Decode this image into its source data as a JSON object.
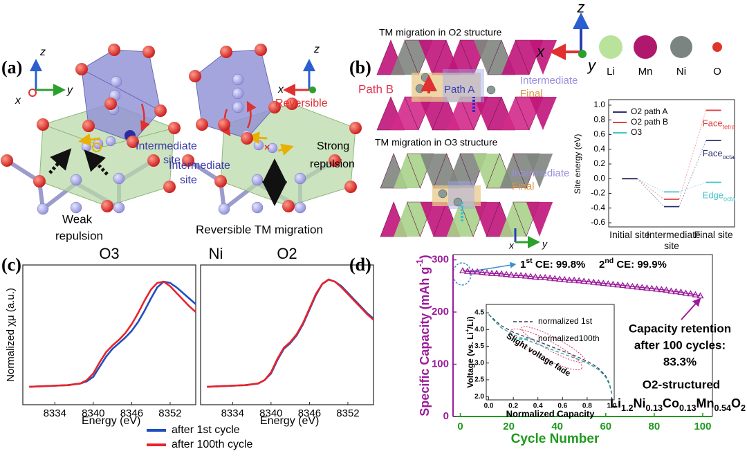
{
  "panel_a": {
    "label": "(a)",
    "left": {
      "axes": {
        "z": "z",
        "y": "y",
        "x": "x"
      },
      "site_label": [
        "Intermediate",
        "site"
      ],
      "caption": [
        "Weak",
        "repulsion"
      ]
    },
    "right": {
      "axes": {
        "z": "z",
        "x": "x"
      },
      "reversible": "Reversible",
      "site_label": [
        "Intermediate",
        "site"
      ],
      "repulsion": [
        "Strong",
        "repulsion"
      ],
      "caption": "Reversible TM migration"
    }
  },
  "panel_b": {
    "label": "(b)",
    "o2_title": "TM migration in O2 structure",
    "path_b": "Path B",
    "path_a": "Path A",
    "o2_intermediate": "Intermediate",
    "o2_final": "Final",
    "o3_title": "TM migration in O3 structure",
    "o3_intermediate": "Intermediate",
    "o3_final": "Final",
    "o3_axes": {
      "x": "x",
      "y": "y"
    },
    "axes": {
      "z": "z",
      "x": "x",
      "y": "y"
    },
    "atoms": [
      "Li",
      "Mn",
      "Ni",
      "O"
    ]
  },
  "chart_data": [
    {
      "type": "level",
      "ylabel": "Site energy (eV)",
      "categories": [
        "Initial site",
        "Intermediate site",
        "Final site"
      ],
      "ylim": [
        -0.6,
        1.0
      ],
      "yticks": [
        -0.6,
        -0.4,
        -0.2,
        {
          "value": 0,
          "label": "0.0"
        },
        0.2,
        0.4,
        0.6,
        0.8,
        {
          "value": 1,
          "label": "1.0"
        }
      ],
      "series": [
        {
          "name": "O2 path A",
          "color": "#2a2f6e",
          "values": [
            0,
            -0.38,
            0.52
          ],
          "final_label": {
            "text": "Face",
            "sub": "octa"
          }
        },
        {
          "name": "O2 path B",
          "color": "#e2403c",
          "values": [
            0,
            -0.28,
            0.93
          ],
          "final_label": {
            "text": "Face",
            "sub": "tetra"
          }
        },
        {
          "name": "O3",
          "color": "#45c3c8",
          "values": [
            0,
            -0.18,
            -0.05
          ],
          "final_label": {
            "text": "Edge",
            "sub": "octa"
          }
        }
      ]
    },
    {
      "type": "line",
      "panel": "(c)",
      "title": "O3",
      "element": "Ni",
      "ylabel": "Normalized χμ (a.u.)",
      "xlabel": "Energy (eV)",
      "x": [
        8330,
        8332,
        8334,
        8336,
        8338,
        8339,
        8340,
        8341,
        8342,
        8343,
        8344,
        8345,
        8346,
        8347,
        8348,
        8349,
        8350,
        8351,
        8352,
        8353,
        8354,
        8355,
        8356
      ],
      "xlim": [
        8329,
        8356
      ],
      "xticks": [
        8334,
        8340,
        8346,
        8352
      ],
      "ylim": [
        -0.1,
        1.15
      ],
      "series": [
        {
          "name": "after 1st cycle",
          "color": "#1f4fbf",
          "values": [
            0.06,
            0.065,
            0.07,
            0.075,
            0.09,
            0.11,
            0.15,
            0.24,
            0.33,
            0.4,
            0.45,
            0.5,
            0.56,
            0.64,
            0.74,
            0.85,
            0.95,
            1.0,
            0.99,
            0.95,
            0.9,
            0.85,
            0.8
          ]
        },
        {
          "name": "after 100th cycle",
          "color": "#e8232a",
          "values": [
            0.06,
            0.065,
            0.07,
            0.075,
            0.09,
            0.12,
            0.18,
            0.28,
            0.37,
            0.43,
            0.48,
            0.54,
            0.62,
            0.72,
            0.83,
            0.93,
            0.99,
            1.0,
            0.96,
            0.9,
            0.84,
            0.78,
            0.73
          ]
        }
      ]
    },
    {
      "type": "line",
      "title": "O2",
      "xlabel": "Energy (eV)",
      "x": [
        8330,
        8332,
        8334,
        8336,
        8338,
        8339,
        8340,
        8341,
        8342,
        8343,
        8344,
        8345,
        8346,
        8347,
        8348,
        8349,
        8350,
        8351,
        8352,
        8353,
        8354,
        8355,
        8356
      ],
      "xlim": [
        8329,
        8356
      ],
      "xticks": [
        8334,
        8340,
        8346,
        8352
      ],
      "ylim": [
        -0.1,
        1.15
      ],
      "series": [
        {
          "color": "#1f4fbf",
          "values": [
            0.06,
            0.065,
            0.07,
            0.075,
            0.09,
            0.12,
            0.18,
            0.3,
            0.4,
            0.45,
            0.52,
            0.62,
            0.75,
            0.88,
            0.98,
            1.02,
            1.0,
            0.96,
            0.9,
            0.84,
            0.78,
            0.72,
            0.67
          ]
        },
        {
          "color": "#e8232a",
          "values": [
            0.06,
            0.065,
            0.07,
            0.075,
            0.09,
            0.12,
            0.19,
            0.31,
            0.41,
            0.46,
            0.53,
            0.63,
            0.76,
            0.89,
            0.98,
            1.02,
            1.0,
            0.95,
            0.89,
            0.83,
            0.77,
            0.71,
            0.66
          ]
        }
      ]
    },
    {
      "type": "scatter",
      "panel": "(d)",
      "ylabel": "Specific Capacity (mAh g",
      "ylabel_sup": "-1",
      "ylabel_end": ")",
      "xlabel": "Cycle Number",
      "color": "#9b1b9b",
      "xcolor": "#1e9a1e",
      "x": [
        1,
        3,
        5,
        7,
        9,
        11,
        13,
        15,
        17,
        19,
        21,
        23,
        25,
        27,
        29,
        31,
        33,
        35,
        37,
        39,
        41,
        43,
        45,
        47,
        49,
        51,
        53,
        55,
        57,
        59,
        61,
        63,
        65,
        67,
        69,
        71,
        73,
        75,
        77,
        79,
        81,
        83,
        85,
        87,
        89,
        91,
        93,
        95,
        97,
        99
      ],
      "values": [
        279,
        278,
        277,
        277,
        276,
        275,
        274,
        274,
        273,
        272,
        271,
        270,
        270,
        269,
        268,
        267,
        266,
        266,
        265,
        264,
        263,
        262,
        261,
        261,
        260,
        259,
        258,
        257,
        256,
        255,
        254,
        253,
        252,
        251,
        250,
        249,
        248,
        247,
        246,
        245,
        244,
        243,
        242,
        240,
        239,
        238,
        236,
        235,
        233,
        231
      ],
      "xlim": [
        -3,
        104
      ],
      "xticks": [
        0,
        20,
        40,
        60,
        80,
        100
      ],
      "ylim": [
        0,
        310
      ],
      "yticks": [
        0,
        100,
        200,
        300
      ],
      "ce": [
        {
          "lead": "1",
          "sup": "st",
          "rest": " CE: 99.8%"
        },
        {
          "lead": "2",
          "sup": "nd",
          "rest": " CE: 99.9%"
        }
      ],
      "retention": [
        "Capacity retention",
        "after 100 cycles:",
        "83.3%"
      ],
      "material": "O2-structured",
      "formula": [
        [
          "Li",
          "1.2"
        ],
        [
          "Ni",
          "0.13"
        ],
        [
          "Co",
          "0.13"
        ],
        [
          "Mn",
          "0.54"
        ],
        [
          "O",
          "2"
        ]
      ]
    },
    {
      "type": "line",
      "xlabel": "Normalized Capacity",
      "ylabel": "Voltage (vs. Li",
      "ylabel_sup": "+",
      "ylabel_end": "/Li)",
      "annotation": "Slight voltage fade",
      "dashed": true,
      "x": [
        0,
        0.02,
        0.05,
        0.1,
        0.2,
        0.3,
        0.4,
        0.5,
        0.6,
        0.7,
        0.8,
        0.85,
        0.9,
        0.95,
        0.98,
        1.0
      ],
      "xlim": [
        -0.02,
        1.02
      ],
      "xticks": [
        {
          "value": 0,
          "label": "0.0"
        },
        0.2,
        0.4,
        0.6,
        0.8,
        {
          "value": 1,
          "label": "1.0"
        }
      ],
      "ylim": [
        1.9,
        4.75
      ],
      "yticks": [
        {
          "value": 2,
          "label": "2.0"
        },
        2.5,
        {
          "value": 3,
          "label": "3.0"
        },
        3.5,
        {
          "value": 4,
          "label": "4.0"
        },
        4.5
      ],
      "series": [
        {
          "name": "normalized 1st",
          "color": "#333a55",
          "values": [
            4.45,
            4.38,
            4.28,
            4.12,
            3.92,
            3.78,
            3.65,
            3.5,
            3.36,
            3.22,
            3.05,
            2.95,
            2.82,
            2.62,
            2.4,
            2.1
          ]
        },
        {
          "name": "normalized100th",
          "color": "#2aa39a",
          "values": [
            4.45,
            4.36,
            4.24,
            4.06,
            3.85,
            3.7,
            3.56,
            3.42,
            3.28,
            3.15,
            3.0,
            2.9,
            2.78,
            2.58,
            2.36,
            2.08
          ]
        }
      ]
    }
  ]
}
